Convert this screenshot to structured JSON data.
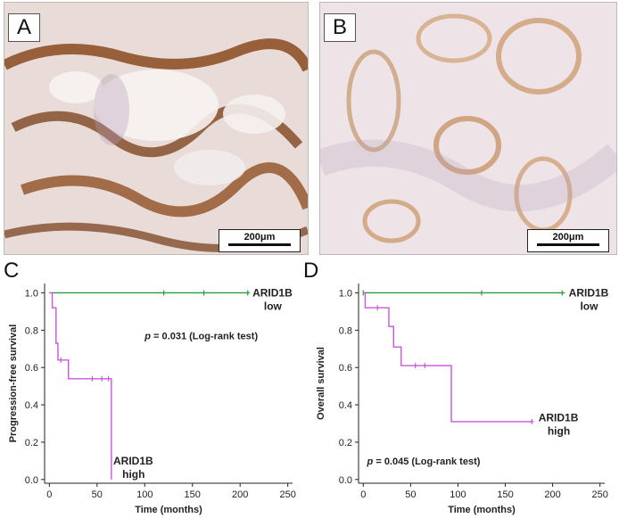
{
  "panels": {
    "a": {
      "letter": "A",
      "scale_label": "200μm"
    },
    "b": {
      "letter": "B",
      "scale_label": "200μm"
    }
  },
  "colors": {
    "low": "#2e9a3e",
    "high": "#cc55dd",
    "axis": "#222222"
  },
  "chart_data": [
    {
      "panel": "C",
      "type": "line",
      "step": true,
      "xlabel": "Time (months)",
      "ylabel": "Progression-free survival",
      "xlim": [
        -5,
        255
      ],
      "ylim": [
        -0.02,
        1.05
      ],
      "xticks": [
        0,
        50,
        100,
        150,
        200,
        250
      ],
      "yticks": [
        0.0,
        0.2,
        0.4,
        0.6,
        0.8,
        1.0
      ],
      "annotation": {
        "prefix": "p",
        "text": " = 0.031 (Log-rank test)",
        "x": 100,
        "y": 0.77
      },
      "series": [
        {
          "name_line1": "ARID1B",
          "name_line2": "low",
          "color": "#2e9a3e",
          "x": [
            0,
            210
          ],
          "y": [
            1.0,
            1.0
          ],
          "censor_x": [
            120,
            162,
            208
          ],
          "label_pos": {
            "x": 213,
            "y": 1.0
          }
        },
        {
          "name_line1": "ARID1B",
          "name_line2": "high",
          "color": "#cc55dd",
          "x": [
            0,
            3,
            3,
            7,
            7,
            9,
            9,
            20,
            20,
            65,
            65
          ],
          "y": [
            1.0,
            1.0,
            0.92,
            0.92,
            0.73,
            0.73,
            0.64,
            0.64,
            0.54,
            0.54,
            0.0
          ],
          "censor_x": [
            12,
            45,
            55,
            62
          ],
          "label_pos": {
            "x": 67,
            "y": 0.1
          }
        }
      ]
    },
    {
      "panel": "D",
      "type": "line",
      "step": true,
      "xlabel": "Time (months)",
      "ylabel": "Overall survival",
      "xlim": [
        -5,
        255
      ],
      "ylim": [
        -0.02,
        1.05
      ],
      "xticks": [
        0,
        50,
        100,
        150,
        200,
        250
      ],
      "yticks": [
        0.0,
        0.2,
        0.4,
        0.6,
        0.8,
        1.0
      ],
      "annotation": {
        "prefix": "p",
        "text": " = 0.045 (Log-rank test)",
        "x": 4,
        "y": 0.1
      },
      "series": [
        {
          "name_line1": "ARID1B",
          "name_line2": "low",
          "color": "#2e9a3e",
          "x": [
            0,
            213
          ],
          "y": [
            1.0,
            1.0
          ],
          "censor_x": [
            0,
            125,
            210
          ],
          "label_pos": {
            "x": 217,
            "y": 1.0
          }
        },
        {
          "name_line1": "ARID1B",
          "name_line2": "high",
          "color": "#cc55dd",
          "x": [
            0,
            2,
            2,
            27,
            27,
            32,
            32,
            40,
            40,
            93,
            93,
            180
          ],
          "y": [
            1.0,
            1.0,
            0.92,
            0.92,
            0.82,
            0.82,
            0.71,
            0.71,
            0.61,
            0.61,
            0.31,
            0.31
          ],
          "censor_x": [
            15,
            55,
            65,
            178
          ],
          "label_pos": {
            "x": 185,
            "y": 0.33
          }
        }
      ]
    }
  ],
  "plot_letters": [
    "C",
    "D"
  ]
}
